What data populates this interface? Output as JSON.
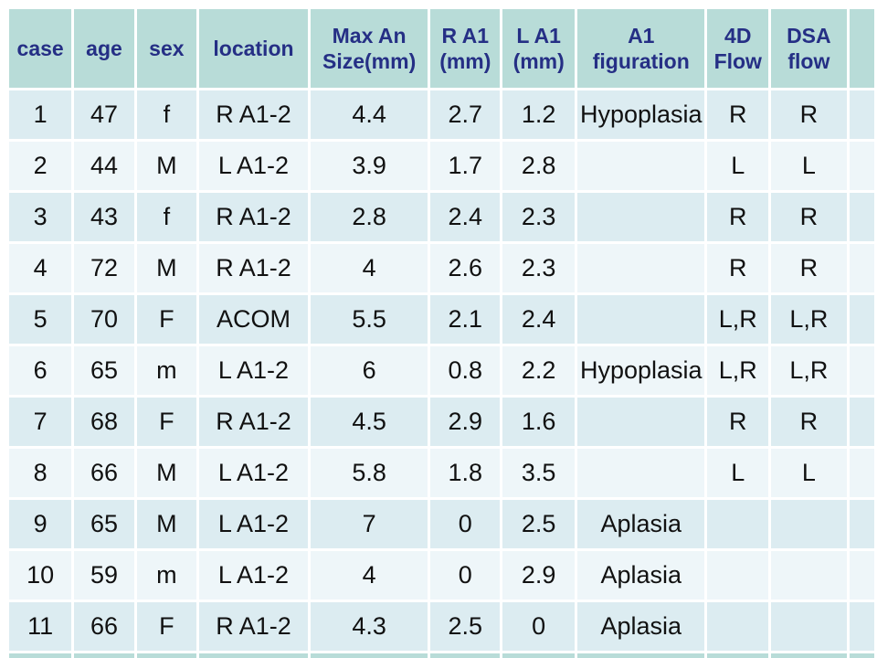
{
  "colors": {
    "header_bg": "#b8dcd8",
    "header_text": "#252f85",
    "row_odd_bg": "#dcecf1",
    "row_even_bg": "#eef6f9",
    "body_text": "#111111",
    "background": "#ffffff"
  },
  "table": {
    "headers": [
      "case",
      "age",
      "sex",
      "location",
      "Max An\nSize(mm)",
      "R A1\n(mm)",
      "L A1\n(mm)",
      "A1\nfiguration",
      "4D\nFlow",
      "DSA\nflow"
    ],
    "rows": [
      [
        "1",
        "47",
        "f",
        "R A1-2",
        "4.4",
        "2.7",
        "1.2",
        "Hypoplasia",
        "R",
        "R"
      ],
      [
        "2",
        "44",
        "M",
        "L A1-2",
        "3.9",
        "1.7",
        "2.8",
        "",
        "L",
        "L"
      ],
      [
        "3",
        "43",
        "f",
        "R A1-2",
        "2.8",
        "2.4",
        "2.3",
        "",
        "R",
        "R"
      ],
      [
        "4",
        "72",
        "M",
        "R A1-2",
        "4",
        "2.6",
        "2.3",
        "",
        "R",
        "R"
      ],
      [
        "5",
        "70",
        "F",
        "ACOM",
        "5.5",
        "2.1",
        "2.4",
        "",
        "L,R",
        "L,R"
      ],
      [
        "6",
        "65",
        "m",
        "L A1-2",
        "6",
        "0.8",
        "2.2",
        "Hypoplasia",
        "L,R",
        "L,R"
      ],
      [
        "7",
        "68",
        "F",
        "R A1-2",
        "4.5",
        "2.9",
        "1.6",
        "",
        "R",
        "R"
      ],
      [
        "8",
        "66",
        "M",
        "L A1-2",
        "5.8",
        "1.8",
        "3.5",
        "",
        "L",
        "L"
      ],
      [
        "9",
        "65",
        "M",
        "L A1-2",
        "7",
        "0",
        "2.5",
        "Aplasia",
        "",
        ""
      ],
      [
        "10",
        "59",
        "m",
        "L A1-2",
        "4",
        "0",
        "2.9",
        "Aplasia",
        "",
        ""
      ],
      [
        "11",
        "66",
        "F",
        "R A1-2",
        "4.3",
        "2.5",
        "0",
        "Aplasia",
        "",
        ""
      ]
    ]
  }
}
